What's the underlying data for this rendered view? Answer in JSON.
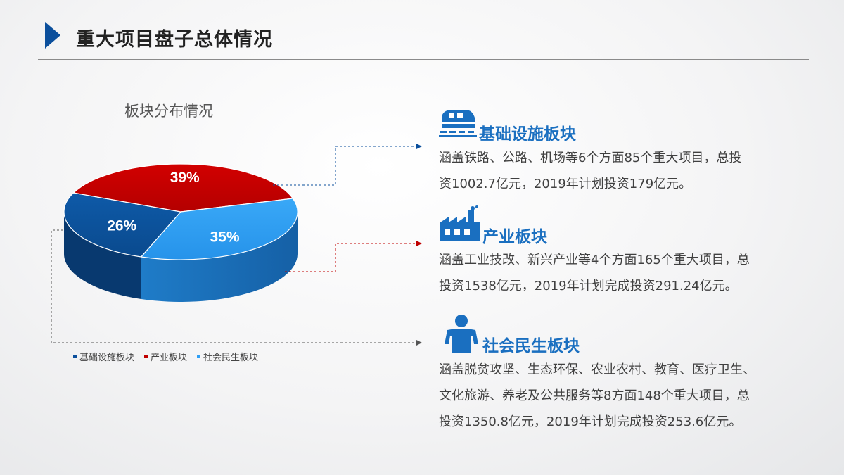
{
  "title": "重大项目盘子总体情况",
  "chart_data": {
    "type": "pie",
    "title": "板块分布情况",
    "categories": [
      "基础设施板块",
      "产业板块",
      "社会民生板块"
    ],
    "values": [
      26,
      39,
      35
    ],
    "labels": [
      "26%",
      "39%",
      "35%"
    ],
    "colors": [
      "#0b4f9c",
      "#c00000",
      "#2e9ff5"
    ],
    "legend_position": "bottom"
  },
  "sections": [
    {
      "icon": "train-icon",
      "title": "基础设施板块",
      "desc_line1": "涵盖铁路、公路、机场等6个方面85个重大项目，总投",
      "desc_line2": "资1002.7亿元，2019年计划投资179亿元。"
    },
    {
      "icon": "factory-icon",
      "title": "产业板块",
      "desc_line1": "涵盖工业技改、新兴产业等4个方面165个重大项目，总",
      "desc_line2": "投资1538亿元，2019年计划完成投资291.24亿元。"
    },
    {
      "icon": "person-icon",
      "title": "社会民生板块",
      "desc_line1": "涵盖脱贫攻坚、生态环保、农业农村、教育、医疗卫生、",
      "desc_line2": "文化旅游、养老及公共服务等8方面148个重大项目，总",
      "desc_line3": "投资1350.8亿元，2019年计划完成投资253.6亿元。"
    }
  ]
}
